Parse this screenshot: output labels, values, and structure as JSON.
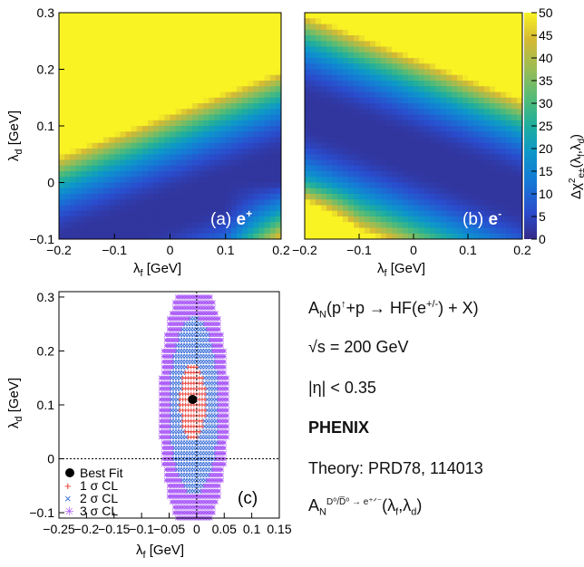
{
  "chart_data": [
    {
      "id": "a",
      "type": "heatmap",
      "panel_label": "(a)",
      "particle": "e",
      "charge": "+",
      "xlabel_main": "λ",
      "xlabel_sub": "f",
      "xlabel_unit": " [GeV]",
      "ylabel_main": "λ",
      "ylabel_sub": "d",
      "ylabel_unit": " [GeV]",
      "xlim": [
        -0.2,
        0.2
      ],
      "ylim": [
        -0.1,
        0.3
      ],
      "xticks": [
        {
          "v": -0.2,
          "t": "−0.2"
        },
        {
          "v": -0.1,
          "t": "−0.1"
        },
        {
          "v": 0,
          "t": "0"
        },
        {
          "v": 0.1,
          "t": "0.1"
        },
        {
          "v": 0.2,
          "t": "0.2"
        }
      ],
      "yticks": [
        {
          "v": -0.1,
          "t": "−0.1"
        },
        {
          "v": 0,
          "t": "0"
        },
        {
          "v": 0.1,
          "t": "0.1"
        },
        {
          "v": 0.2,
          "t": "0.2"
        },
        {
          "v": 0.3,
          "t": "0.3"
        }
      ],
      "minimum_line": {
        "slope": 0.375,
        "intercept": -0.05
      },
      "z_range": [
        0,
        50
      ]
    },
    {
      "id": "b",
      "type": "heatmap",
      "panel_label": "(b)",
      "particle": "e",
      "charge": "-",
      "xlabel_main": "λ",
      "xlabel_sub": "f",
      "xlabel_unit": " [GeV]",
      "xlim": [
        -0.2,
        0.2
      ],
      "ylim": [
        -0.1,
        0.3
      ],
      "xticks": [
        {
          "v": -0.2,
          "t": "−0.2"
        },
        {
          "v": -0.1,
          "t": "−0.1"
        },
        {
          "v": 0,
          "t": "0"
        },
        {
          "v": 0.1,
          "t": "0.1"
        },
        {
          "v": 0.2,
          "t": "0.2"
        }
      ],
      "minimum_line": {
        "slope": -0.375,
        "intercept": 0.05
      },
      "z_range": [
        0,
        50
      ]
    },
    {
      "id": "c",
      "type": "scatter",
      "panel_label": "(c)",
      "xlabel_main": "λ",
      "xlabel_sub": "f",
      "xlabel_unit": " [GeV]",
      "ylabel_main": "λ",
      "ylabel_sub": "d",
      "ylabel_unit": " [GeV]",
      "xlim": [
        -0.25,
        0.15
      ],
      "ylim": [
        -0.11,
        0.31
      ],
      "xticks": [
        {
          "v": -0.25,
          "t": "−0.25"
        },
        {
          "v": -0.2,
          "t": "−0.2"
        },
        {
          "v": -0.15,
          "t": "−0.15"
        },
        {
          "v": -0.1,
          "t": "−0.1"
        },
        {
          "v": -0.05,
          "t": "−0.05"
        },
        {
          "v": 0,
          "t": "0"
        },
        {
          "v": 0.05,
          "t": "0.05"
        },
        {
          "v": 0.1,
          "t": "0.1"
        },
        {
          "v": 0.15,
          "t": "0.15"
        }
      ],
      "yticks": [
        {
          "v": -0.1,
          "t": "−0.1"
        },
        {
          "v": 0,
          "t": "0"
        },
        {
          "v": 0.1,
          "t": "0.1"
        },
        {
          "v": 0.2,
          "t": "0.2"
        },
        {
          "v": 0.3,
          "t": "0.3"
        }
      ],
      "best_fit": {
        "x": -0.0075,
        "y": 0.11
      },
      "regions": [
        {
          "name": "3 σ CL",
          "color": "#a855f7",
          "cx": -0.005,
          "cy": 0.095,
          "rx": 0.062,
          "ry": 0.24
        },
        {
          "name": "2 σ CL",
          "color": "#3b6fd8",
          "cx": -0.005,
          "cy": 0.098,
          "rx": 0.044,
          "ry": 0.165
        },
        {
          "name": "1 σ CL",
          "color": "#e8342c",
          "cx": -0.007,
          "cy": 0.105,
          "rx": 0.024,
          "ry": 0.072
        }
      ],
      "reference_lines": {
        "x": 0,
        "y": 0
      },
      "legend": [
        "Best Fit",
        "1 σ CL",
        "2 σ CL",
        "3 σ CL"
      ]
    }
  ],
  "colorbar": {
    "min": 0,
    "max": 50,
    "ticks": [
      0,
      5,
      10,
      15,
      20,
      25,
      30,
      35,
      40,
      45,
      50
    ],
    "label_main": "Δχ",
    "label_sup": "2",
    "label_sub": "e±",
    "label_args": "(λ",
    "label_arg1": "f",
    "label_comma": ",λ",
    "label_arg2": "d",
    "label_close": ")"
  },
  "info": {
    "line1": {
      "a": "A",
      "a_sub": "N",
      "b": "(p",
      "b_sup": "↑",
      "c": "+p → HF(e",
      "c_sup": "+/-",
      "d": ") + X)"
    },
    "line2": {
      "sqrt": "√s",
      "rest": " = 200 GeV"
    },
    "line3": "|η| < 0.35",
    "line4": "PHENIX",
    "line5": "Theory: PRD78, 114013",
    "line6": {
      "a": "A",
      "a_sub": "N",
      "a_sup": "D⁰/D̅⁰ → e⁺ᐟ⁻",
      "b": "(λ",
      "b_sub1": "f",
      "c": ",λ",
      "c_sub": "d",
      "d": ")"
    }
  }
}
